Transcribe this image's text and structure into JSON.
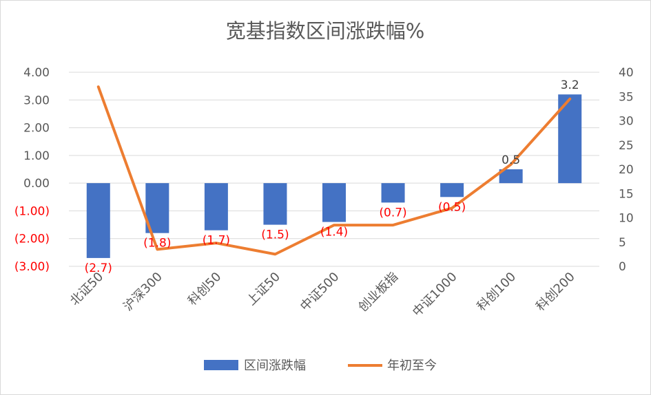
{
  "chart_data": {
    "type": "bar",
    "title": "宽基指数区间涨跌幅%",
    "categories": [
      "北证50",
      "沪深300",
      "科创50",
      "上证50",
      "中证500",
      "创业板指",
      "中证1000",
      "科创100",
      "科创200"
    ],
    "series": [
      {
        "name": "区间涨跌幅",
        "type": "bar",
        "axis": "left",
        "color": "#4472c4",
        "values": [
          -2.7,
          -1.8,
          -1.7,
          -1.5,
          -1.4,
          -0.7,
          -0.5,
          0.5,
          3.2
        ],
        "labels": [
          "(2.7)",
          "(1.8)",
          "(1.7)",
          "(1.5)",
          "(1.4)",
          "(0.7)",
          "(0.5)",
          "0.5",
          "3.2"
        ]
      },
      {
        "name": "年初至今",
        "type": "line",
        "axis": "right",
        "color": "#ed7d31",
        "values": [
          37,
          3.5,
          4.8,
          2.5,
          8.5,
          8.5,
          12,
          21,
          34.5
        ]
      }
    ],
    "y_left": {
      "min": -3,
      "max": 4,
      "step": 1,
      "tick_labels": [
        "4.00",
        "3.00",
        "2.00",
        "1.00",
        "0.00",
        "(1.00)",
        "(2.00)",
        "(3.00)"
      ]
    },
    "y_right": {
      "min": 0,
      "max": 40,
      "step": 5,
      "tick_labels": [
        "40",
        "35",
        "30",
        "25",
        "20",
        "15",
        "10",
        "5",
        "0"
      ]
    },
    "negative_color": "#ff0000",
    "positive_label_color": "#404040",
    "gridlines": true,
    "legend_position": "bottom"
  }
}
